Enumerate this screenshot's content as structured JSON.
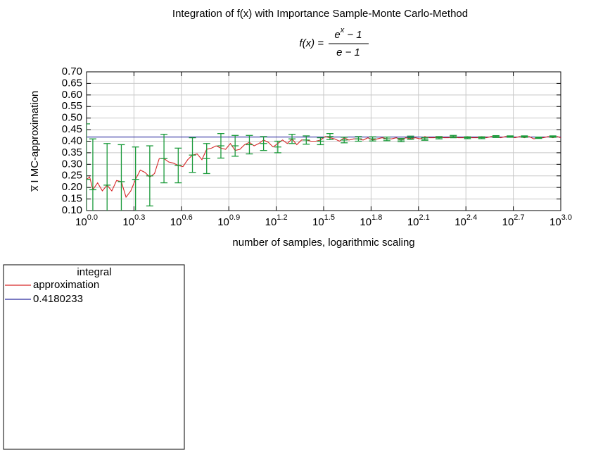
{
  "chart_data": {
    "type": "line",
    "title": "Integration of f(x) with Importance Sample-Monte Carlo-Method",
    "formula": {
      "lhs": "f(x) =",
      "numerator": "e^x − 1",
      "denominator": "e − 1"
    },
    "xlabel": "number of samples, logarithmic scaling",
    "ylabel": "x̅ I MC-approximation",
    "log_x": true,
    "grid": true,
    "xlim": [
      1,
      1000
    ],
    "xticks": [
      {
        "value": 1,
        "label": "10^0.0"
      },
      {
        "value": 1.995,
        "label": "10^0.3"
      },
      {
        "value": 3.981,
        "label": "10^0.6"
      },
      {
        "value": 7.943,
        "label": "10^0.9"
      },
      {
        "value": 15.85,
        "label": "10^1.2"
      },
      {
        "value": 31.62,
        "label": "10^1.5"
      },
      {
        "value": 63.1,
        "label": "10^1.8"
      },
      {
        "value": 125.9,
        "label": "10^2.1"
      },
      {
        "value": 251.2,
        "label": "10^2.4"
      },
      {
        "value": 501.2,
        "label": "10^2.7"
      },
      {
        "value": 1000,
        "label": "10^3.0"
      }
    ],
    "ylim": [
      0.1,
      0.7
    ],
    "yticks": [
      {
        "value": 0.1,
        "label": "0.10"
      },
      0.15,
      {
        "value": 0.2,
        "label": "0.20"
      },
      0.25,
      {
        "value": 0.3,
        "label": "0.30"
      },
      0.35,
      {
        "value": 0.4,
        "label": "0.40"
      },
      0.45,
      {
        "value": 0.5,
        "label": "0.50"
      },
      0.55,
      {
        "value": 0.6,
        "label": "0.60"
      },
      0.65,
      {
        "value": 0.7,
        "label": "0.70"
      }
    ],
    "legend_title": "integral",
    "legend_position": "below-left",
    "series": [
      {
        "name": "approximation",
        "color": "#d62728",
        "x": [
          1,
          1.047,
          1.096,
          1.175,
          1.259,
          1.349,
          1.445,
          1.549,
          1.66,
          1.778,
          1.905,
          2.042,
          2.188,
          2.344,
          2.512,
          2.692,
          2.884,
          3.09,
          3.311,
          3.548,
          3.802,
          4.074,
          4.365,
          4.677,
          5.012,
          5.37,
          5.754,
          6.166,
          6.607,
          7.079,
          7.586,
          8.128,
          8.71,
          9.333,
          10,
          10.72,
          11.48,
          12.3,
          13.18,
          14.13,
          15.14,
          16.22,
          17.38,
          18.62,
          19.95,
          21.38,
          22.91,
          24.55,
          26.3,
          28.18,
          30.2,
          32.36,
          34.67,
          37.15,
          39.81,
          42.66,
          45.71,
          48.98,
          52.48,
          56.23,
          60.26,
          64.57,
          69.18,
          74.13,
          79.43,
          85.11,
          91.2,
          97.72,
          104.7,
          112.2,
          120.2,
          128.8,
          138.0,
          147.9,
          158.5,
          169.8,
          182.0,
          195.0,
          208.9,
          223.9,
          239.9,
          257.0,
          275.4,
          295.1,
          316.2,
          338.8,
          363.1,
          389.0,
          416.9,
          446.7,
          478.6,
          512.9,
          549.5,
          588.8,
          631.0,
          676.1,
          724.4,
          776.2,
          831.8,
          891.3,
          955.0,
          1000
        ],
        "values": [
          0.235,
          0.245,
          0.19,
          0.22,
          0.185,
          0.21,
          0.185,
          0.23,
          0.225,
          0.158,
          0.185,
          0.235,
          0.275,
          0.265,
          0.245,
          0.26,
          0.325,
          0.325,
          0.31,
          0.305,
          0.295,
          0.29,
          0.32,
          0.34,
          0.345,
          0.32,
          0.365,
          0.37,
          0.38,
          0.37,
          0.365,
          0.39,
          0.36,
          0.365,
          0.385,
          0.395,
          0.38,
          0.39,
          0.405,
          0.395,
          0.375,
          0.39,
          0.405,
          0.39,
          0.41,
          0.385,
          0.405,
          0.405,
          0.4,
          0.4,
          0.405,
          0.42,
          0.415,
          0.41,
          0.4,
          0.415,
          0.405,
          0.41,
          0.41,
          0.405,
          0.415,
          0.405,
          0.41,
          0.415,
          0.41,
          0.41,
          0.415,
          0.405,
          0.415,
          0.41,
          0.415,
          0.41,
          0.42,
          0.415,
          0.415,
          0.42,
          0.415,
          0.415,
          0.42,
          0.415,
          0.415,
          0.42,
          0.415,
          0.415,
          0.42,
          0.415,
          0.42,
          0.42,
          0.415,
          0.42,
          0.42,
          0.415,
          0.42,
          0.415,
          0.42,
          0.41,
          0.415,
          0.415,
          0.42,
          0.415,
          0.42,
          0.415
        ]
      },
      {
        "name": "0.4180233",
        "color": "#2b2b9e",
        "value": 0.4180233
      }
    ],
    "error_bars": {
      "color": "#1a9a3a",
      "x": [
        1,
        1.096,
        1.349,
        1.66,
        2.042,
        2.512,
        3.09,
        3.802,
        4.677,
        5.754,
        7.079,
        8.71,
        10.72,
        13.18,
        16.22,
        19.95,
        24.55,
        30.2,
        34.67,
        42.66,
        52.48,
        64.57,
        79.43,
        97.72,
        112.2,
        138.0,
        169.8,
        208.9,
        257.0,
        316.2,
        389.0,
        478.6,
        588.8,
        724.4,
        891.3
      ],
      "values": [
        0.235,
        0.19,
        0.21,
        0.225,
        0.235,
        0.25,
        0.325,
        0.295,
        0.34,
        0.325,
        0.38,
        0.38,
        0.385,
        0.39,
        0.375,
        0.41,
        0.405,
        0.4,
        0.42,
        0.405,
        0.41,
        0.41,
        0.41,
        0.405,
        0.415,
        0.41,
        0.415,
        0.42,
        0.415,
        0.415,
        0.42,
        0.42,
        0.42,
        0.415,
        0.42
      ],
      "errors": [
        0.24,
        0.22,
        0.18,
        0.16,
        0.14,
        0.13,
        0.105,
        0.075,
        0.075,
        0.065,
        0.053,
        0.045,
        0.04,
        0.03,
        0.025,
        0.02,
        0.018,
        0.015,
        0.013,
        0.012,
        0.01,
        0.009,
        0.008,
        0.007,
        0.007,
        0.006,
        0.005,
        0.005,
        0.004,
        0.004,
        0.004,
        0.003,
        0.003,
        0.003,
        0.003
      ]
    }
  }
}
